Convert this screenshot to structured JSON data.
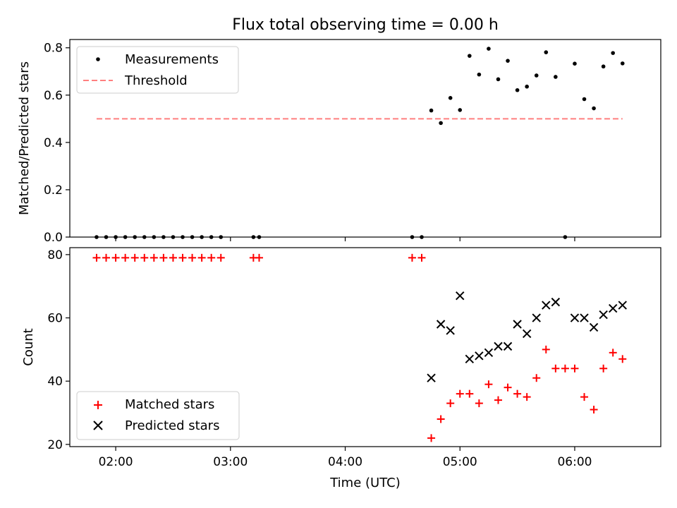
{
  "chart_data": [
    {
      "type": "scatter",
      "title": "Flux total observing time = 0.00 h",
      "xlabel": "",
      "ylabel": "Matched/Predicted stars",
      "ylim": [
        0,
        0.835
      ],
      "yticks": [
        "0.0",
        "0.2",
        "0.4",
        "0.6",
        "0.8"
      ],
      "grid": false,
      "legend_position": "upper-left",
      "series": [
        {
          "name": "Measurements",
          "color": "#000000",
          "marker": "dot",
          "points": [
            [
              "01:50",
              0.0
            ],
            [
              "01:55",
              0.0
            ],
            [
              "02:00",
              0.0
            ],
            [
              "02:05",
              0.0
            ],
            [
              "02:10",
              0.0
            ],
            [
              "02:15",
              0.0
            ],
            [
              "02:20",
              0.0
            ],
            [
              "02:25",
              0.0
            ],
            [
              "02:30",
              0.0
            ],
            [
              "02:35",
              0.0
            ],
            [
              "02:40",
              0.0
            ],
            [
              "02:45",
              0.0
            ],
            [
              "02:50",
              0.0
            ],
            [
              "02:55",
              0.0
            ],
            [
              "03:12",
              0.0
            ],
            [
              "03:15",
              0.0
            ],
            [
              "04:35",
              0.0
            ],
            [
              "04:40",
              0.0
            ],
            [
              "04:45",
              0.535
            ],
            [
              "04:50",
              0.482
            ],
            [
              "04:55",
              0.588
            ],
            [
              "05:00",
              0.537
            ],
            [
              "05:05",
              0.766
            ],
            [
              "05:10",
              0.687
            ],
            [
              "05:15",
              0.796
            ],
            [
              "05:20",
              0.667
            ],
            [
              "05:25",
              0.745
            ],
            [
              "05:30",
              0.621
            ],
            [
              "05:35",
              0.636
            ],
            [
              "05:40",
              0.683
            ],
            [
              "05:45",
              0.781
            ],
            [
              "05:50",
              0.677
            ],
            [
              "05:55",
              0.0
            ],
            [
              "06:00",
              0.733
            ],
            [
              "06:05",
              0.583
            ],
            [
              "06:10",
              0.544
            ],
            [
              "06:15",
              0.721
            ],
            [
              "06:20",
              0.778
            ],
            [
              "06:25",
              0.734
            ]
          ]
        },
        {
          "name": "Threshold",
          "color": "#ff7f7f",
          "style": "dashed",
          "points": [
            [
              "01:50",
              0.5
            ],
            [
              "06:25",
              0.5
            ]
          ]
        }
      ]
    },
    {
      "type": "scatter",
      "title": "",
      "xlabel": "Time (UTC)",
      "ylabel": "Count",
      "ylim": [
        19.3,
        82.2
      ],
      "yticks": [
        "20",
        "40",
        "60",
        "80"
      ],
      "xlim": [
        "01:36",
        "06:45"
      ],
      "xticks": [
        "02:00",
        "03:00",
        "04:00",
        "05:00",
        "06:00"
      ],
      "grid": false,
      "legend_position": "lower-left",
      "series": [
        {
          "name": "Matched stars",
          "color": "#ff0000",
          "marker": "plus",
          "points": [
            [
              "01:50",
              79
            ],
            [
              "01:55",
              79
            ],
            [
              "02:00",
              79
            ],
            [
              "02:05",
              79
            ],
            [
              "02:10",
              79
            ],
            [
              "02:15",
              79
            ],
            [
              "02:20",
              79
            ],
            [
              "02:25",
              79
            ],
            [
              "02:30",
              79
            ],
            [
              "02:35",
              79
            ],
            [
              "02:40",
              79
            ],
            [
              "02:45",
              79
            ],
            [
              "02:50",
              79
            ],
            [
              "02:55",
              79
            ],
            [
              "03:12",
              79
            ],
            [
              "03:15",
              79
            ],
            [
              "04:35",
              79
            ],
            [
              "04:40",
              79
            ],
            [
              "04:45",
              22
            ],
            [
              "04:50",
              28
            ],
            [
              "04:55",
              33
            ],
            [
              "05:00",
              36
            ],
            [
              "05:05",
              36
            ],
            [
              "05:10",
              33
            ],
            [
              "05:15",
              39
            ],
            [
              "05:20",
              34
            ],
            [
              "05:25",
              38
            ],
            [
              "05:30",
              36
            ],
            [
              "05:35",
              35
            ],
            [
              "05:40",
              41
            ],
            [
              "05:45",
              50
            ],
            [
              "05:50",
              44
            ],
            [
              "05:55",
              44
            ],
            [
              "06:00",
              44
            ],
            [
              "06:05",
              35
            ],
            [
              "06:10",
              31
            ],
            [
              "06:15",
              44
            ],
            [
              "06:20",
              49
            ],
            [
              "06:25",
              47
            ]
          ]
        },
        {
          "name": "Predicted stars",
          "color": "#000000",
          "marker": "x",
          "points": [
            [
              "04:45",
              41
            ],
            [
              "04:50",
              58
            ],
            [
              "04:55",
              56
            ],
            [
              "05:00",
              67
            ],
            [
              "05:05",
              47
            ],
            [
              "05:10",
              48
            ],
            [
              "05:15",
              49
            ],
            [
              "05:20",
              51
            ],
            [
              "05:25",
              51
            ],
            [
              "05:30",
              58
            ],
            [
              "05:35",
              55
            ],
            [
              "05:40",
              60
            ],
            [
              "05:45",
              64
            ],
            [
              "05:50",
              65
            ],
            [
              "06:00",
              60
            ],
            [
              "06:05",
              60
            ],
            [
              "06:10",
              57
            ],
            [
              "06:15",
              61
            ],
            [
              "06:20",
              63
            ],
            [
              "06:25",
              64
            ]
          ]
        }
      ]
    }
  ]
}
